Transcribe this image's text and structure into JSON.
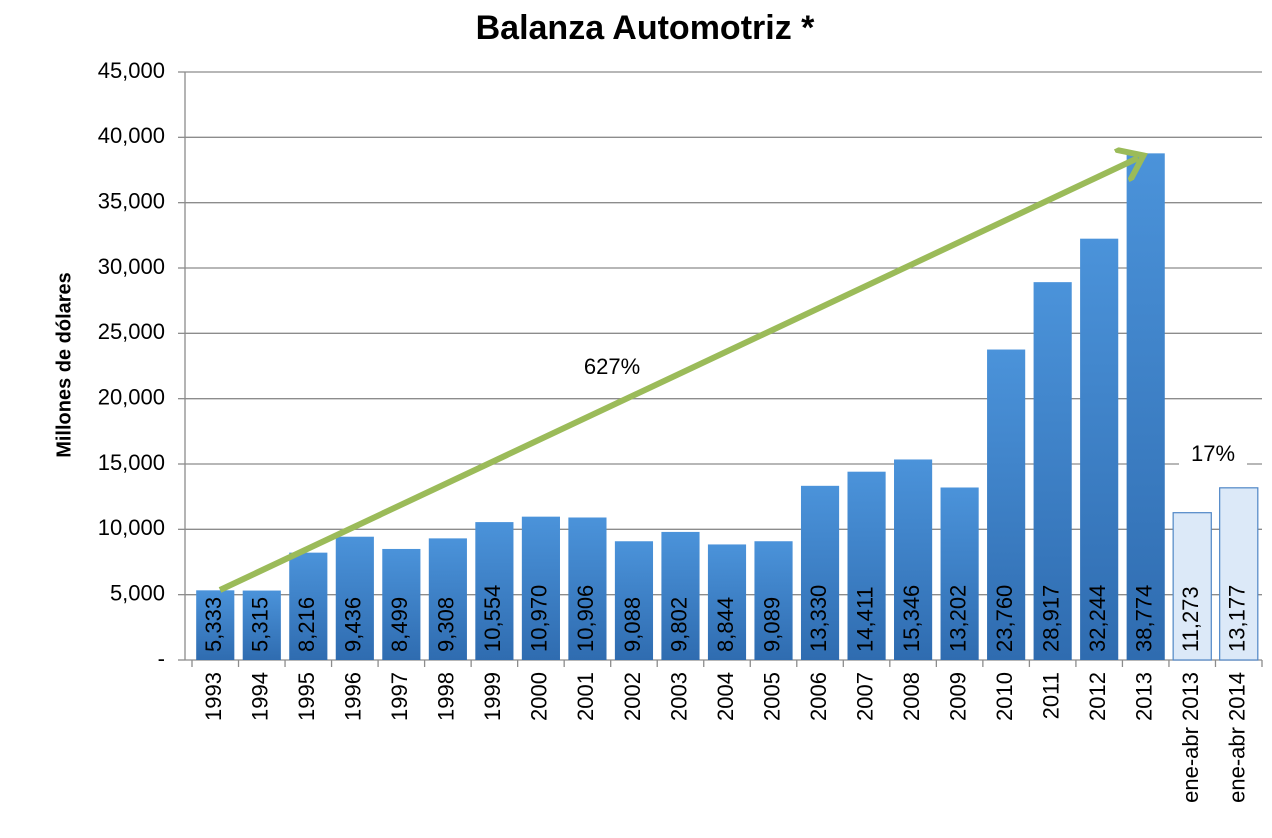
{
  "chart_data": {
    "type": "bar",
    "title": "Balanza Automotriz *",
    "y_label": "Millones de dólares",
    "categories": [
      "1993",
      "1994",
      "1995",
      "1996",
      "1997",
      "1998",
      "1999",
      "2000",
      "2001",
      "2002",
      "2003",
      "2004",
      "2005",
      "2006",
      "2007",
      "2008",
      "2009",
      "2010",
      "2011",
      "2012",
      "2013",
      "ene-abr 2013",
      "ene-abr 2014"
    ],
    "values": [
      5333,
      5315,
      8216,
      9436,
      8499,
      9308,
      10554,
      10970,
      10906,
      9088,
      9802,
      8844,
      9089,
      13330,
      14411,
      15346,
      13202,
      23760,
      28917,
      32244,
      38774,
      11273,
      13177
    ],
    "value_labels": [
      "5,333",
      "5,315",
      "8,216",
      "9,436",
      "8,499",
      "9,308",
      "10,554",
      "10,970",
      "10,906",
      "9,088",
      "9,802",
      "8,844",
      "9,089",
      "13,330",
      "14,411",
      "15,346",
      "13,202",
      "23,760",
      "28,917",
      "32,244",
      "38,774",
      "11,273",
      "13,177"
    ],
    "colors": [
      "#3f82cc",
      "#3f82cc",
      "#3f82cc",
      "#3f82cc",
      "#3f82cc",
      "#3f82cc",
      "#3f82cc",
      "#3f82cc",
      "#3f82cc",
      "#3f82cc",
      "#3f82cc",
      "#3f82cc",
      "#3f82cc",
      "#3f82cc",
      "#3f82cc",
      "#3f82cc",
      "#3f82cc",
      "#3f82cc",
      "#3f82cc",
      "#3f82cc",
      "#3f82cc",
      "#dce9f8",
      "#dce9f8"
    ],
    "value_label_colors": [
      "#000000",
      "#000000",
      "#ffffff",
      "#ffffff",
      "#ffffff",
      "#ffffff",
      "#ffffff",
      "#ffffff",
      "#ffffff",
      "#ffffff",
      "#ffffff",
      "#ffffff",
      "#ffffff",
      "#ffffff",
      "#ffffff",
      "#ffffff",
      "#ffffff",
      "#ffffff",
      "#ffffff",
      "#ffffff",
      "#ffffff",
      "#2e5f9e",
      "#2e5f9e"
    ],
    "annotations": [
      "627%",
      "17%"
    ],
    "ylim": [
      0,
      45000
    ],
    "yticks": [
      {
        "value": 0,
        "label": "-"
      },
      {
        "value": 5000,
        "label": "5,000"
      },
      {
        "value": 10000,
        "label": "10,000"
      },
      {
        "value": 15000,
        "label": "15,000"
      },
      {
        "value": 20000,
        "label": "20,000"
      },
      {
        "value": 25000,
        "label": "25,000"
      },
      {
        "value": 30000,
        "label": "30,000"
      },
      {
        "value": 35000,
        "label": "35,000"
      },
      {
        "value": 40000,
        "label": "40,000"
      },
      {
        "value": 45000,
        "label": "45,000"
      }
    ],
    "grid": true
  }
}
